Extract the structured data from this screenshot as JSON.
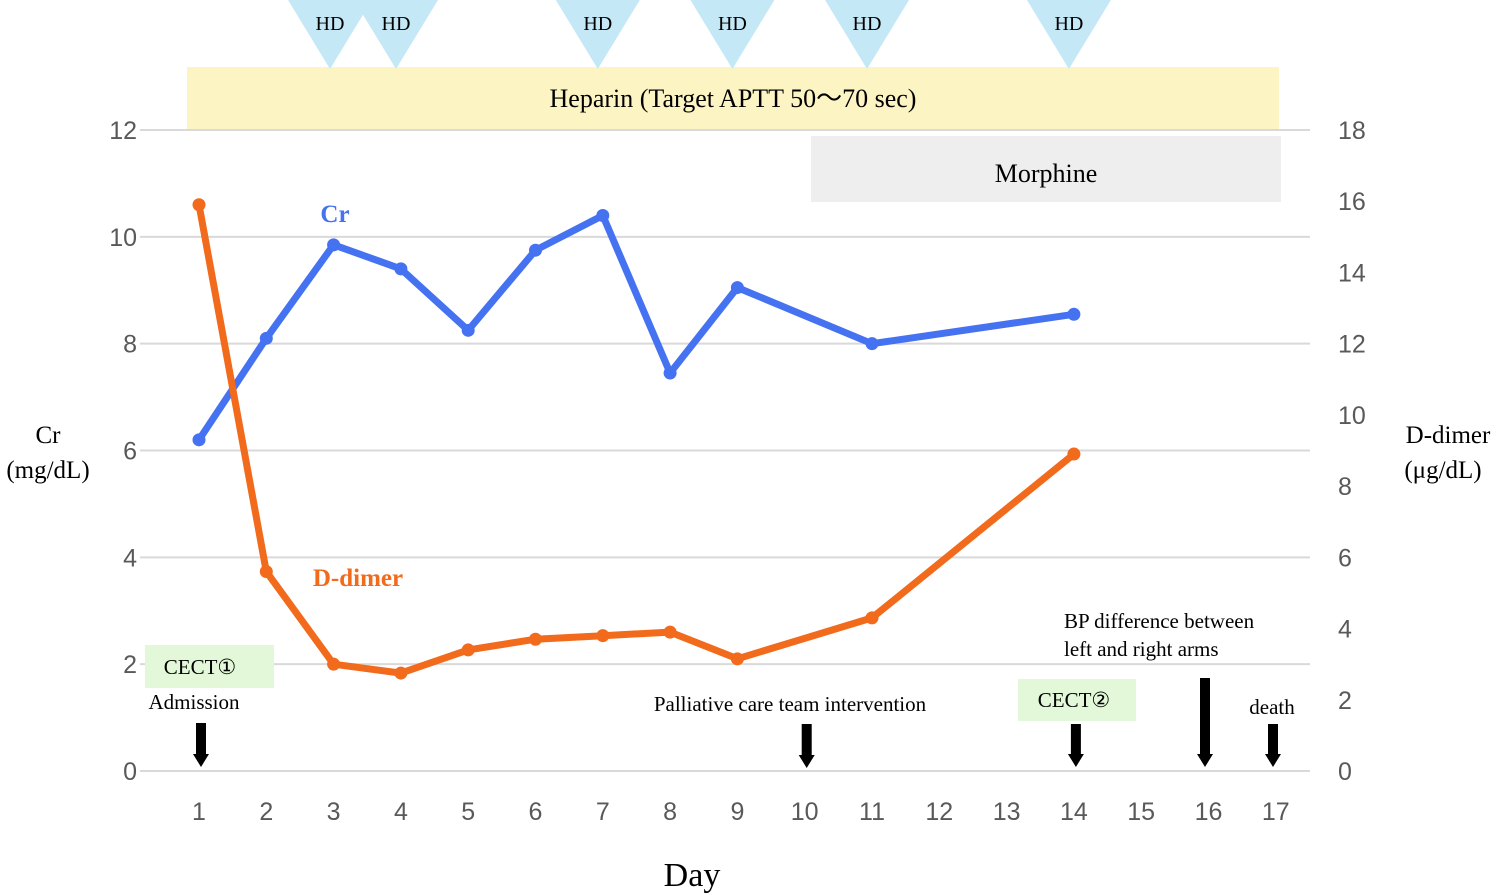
{
  "chart_data": {
    "type": "line",
    "x": [
      "1",
      "2",
      "3",
      "4",
      "5",
      "6",
      "7",
      "8",
      "9",
      "10",
      "11",
      "12",
      "13",
      "14",
      "15",
      "16",
      "17"
    ],
    "xlabel": "Day",
    "y_left": {
      "label_line1": "Cr",
      "label_line2": "(mg/dL)",
      "ylim": [
        0,
        12
      ],
      "ticks": [
        0,
        2,
        4,
        6,
        8,
        10,
        12
      ]
    },
    "y_right": {
      "label_line1": "D-dimer",
      "label_line2": "(μg/dL)",
      "ylim": [
        0,
        18
      ],
      "ticks": [
        0,
        2,
        4,
        6,
        8,
        10,
        12,
        14,
        16,
        18
      ]
    },
    "grid": true,
    "series": [
      {
        "name": "Cr",
        "axis": "left",
        "color": "#4472f0",
        "points": [
          [
            1,
            6.2
          ],
          [
            2,
            8.1
          ],
          [
            3,
            9.85
          ],
          [
            4,
            9.4
          ],
          [
            5,
            8.25
          ],
          [
            6,
            9.75
          ],
          [
            7,
            10.4
          ],
          [
            8,
            7.45
          ],
          [
            9,
            9.05
          ],
          [
            11,
            8.0
          ],
          [
            14,
            8.55
          ]
        ]
      },
      {
        "name": "D-dimer",
        "axis": "right",
        "color": "#f26a1b",
        "points": [
          [
            1,
            15.9
          ],
          [
            2,
            5.6
          ],
          [
            3,
            3.0
          ],
          [
            4,
            2.75
          ],
          [
            5,
            3.4
          ],
          [
            6,
            3.7
          ],
          [
            7,
            3.8
          ],
          [
            8,
            3.9
          ],
          [
            9,
            3.15
          ],
          [
            11,
            4.3
          ],
          [
            14,
            8.9
          ]
        ]
      }
    ],
    "hd_markers": {
      "label": "HD",
      "color": "#c5e8f7",
      "days": [
        3,
        4,
        7,
        9,
        11,
        14
      ]
    },
    "bands": [
      {
        "label": "Heparin (Target APTT 50～70 sec)",
        "color": "#fdf4c4",
        "start_day": 1,
        "end_day": 17
      },
      {
        "label": "Morphine",
        "color": "#eeeeee",
        "start_day": 10,
        "end_day": 17
      }
    ],
    "events": [
      {
        "day": 1,
        "label": "Admission"
      },
      {
        "day": 10,
        "label": "Palliative care team intervention"
      },
      {
        "day": 14,
        "label": ""
      },
      {
        "day": 16,
        "label_line1": "BP difference between",
        "label_line2": "left and right arms"
      },
      {
        "day": 17,
        "label": "death"
      }
    ],
    "cect_boxes": [
      {
        "label": "CECT①",
        "day": 1,
        "color": "#e2f8d8"
      },
      {
        "label": "CECT②",
        "day": 14,
        "color": "#e2f8d8"
      }
    ]
  }
}
